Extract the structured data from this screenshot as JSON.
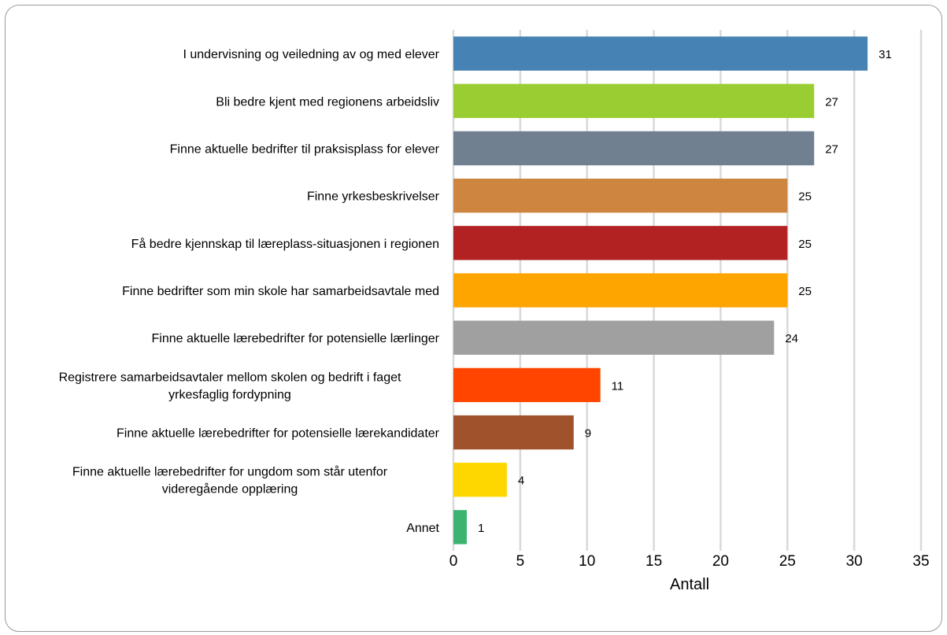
{
  "chart_data": {
    "type": "bar",
    "orientation": "horizontal",
    "categories": [
      "I undervisning og veiledning av og med elever",
      "Bli bedre kjent med regionens arbeidsliv",
      "Finne aktuelle bedrifter til praksisplass for elever",
      "Finne yrkesbeskrivelser",
      "Få bedre kjennskap til læreplass-situasjonen i regionen",
      "Finne bedrifter som min skole har samarbeidsavtale med",
      "Finne aktuelle lærebedrifter for potensielle lærlinger",
      "Registrere samarbeidsavtaler mellom skolen og bedrift i faget yrkesfaglig fordypning",
      "Finne aktuelle lærebedrifter for potensielle lærekandidater",
      "Finne aktuelle lærebedrifter for ungdom som står utenfor videregående opplæring",
      "Annet"
    ],
    "category_label_lines": [
      [
        "I undervisning og veiledning av og med elever"
      ],
      [
        "Bli bedre kjent med regionens arbeidsliv"
      ],
      [
        "Finne aktuelle bedrifter til praksisplass for elever"
      ],
      [
        "Finne yrkesbeskrivelser"
      ],
      [
        "Få bedre kjennskap til læreplass-situasjonen i regionen"
      ],
      [
        "Finne bedrifter som min skole har samarbeidsavtale med"
      ],
      [
        "Finne aktuelle lærebedrifter for potensielle lærlinger"
      ],
      [
        "Registrere samarbeidsavtaler mellom skolen og bedrift i faget",
        "yrkesfaglig fordypning"
      ],
      [
        "Finne aktuelle lærebedrifter for potensielle lærekandidater"
      ],
      [
        "Finne aktuelle lærebedrifter for ungdom som står utenfor",
        "videregående opplæring"
      ],
      [
        "Annet"
      ]
    ],
    "values": [
      31,
      27,
      27,
      25,
      25,
      25,
      24,
      11,
      9,
      4,
      1
    ],
    "value_labels": [
      "31",
      "27",
      "27",
      "25",
      "25",
      "25",
      "24",
      "11",
      "9",
      "4",
      "1"
    ],
    "colors": [
      "#4682b4",
      "#9acd32",
      "#708090",
      "#cd853f",
      "#b22222",
      "#ffa500",
      "#a0a0a0",
      "#ff4500",
      "#a0522d",
      "#ffd700",
      "#3cb371"
    ],
    "xlabel": "Antall",
    "ylabel": "",
    "xlim": [
      0,
      35
    ],
    "xticks": [
      0,
      5,
      10,
      15,
      20,
      25,
      30,
      35
    ],
    "xtick_labels": [
      "0",
      "5",
      "10",
      "15",
      "20",
      "25",
      "30",
      "35"
    ],
    "grid": "vertical",
    "grid_color": "#d9d9d9"
  }
}
